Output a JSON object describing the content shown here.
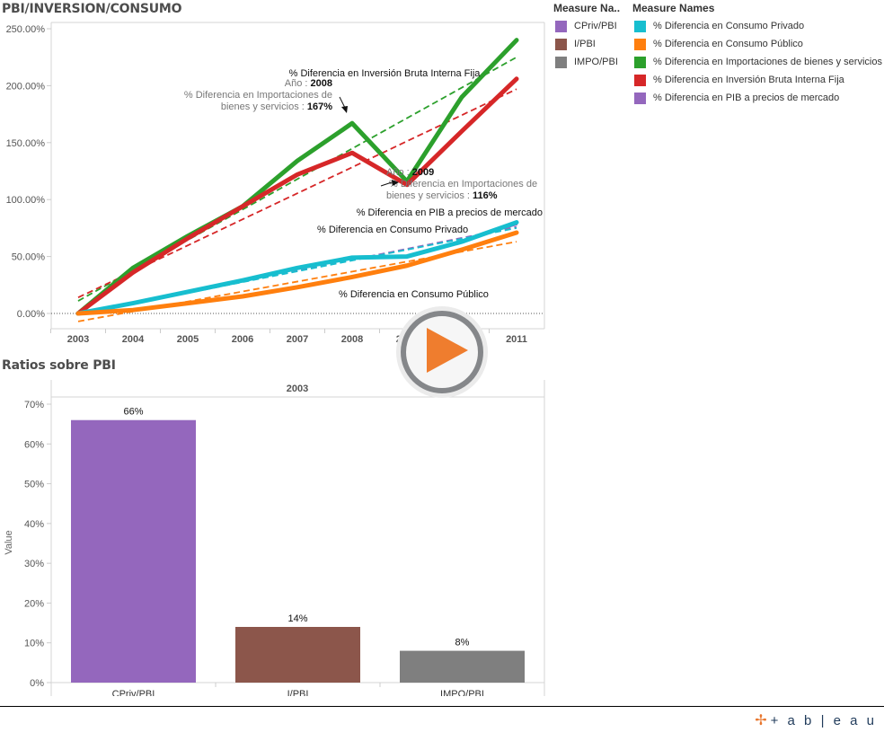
{
  "line_chart_title": "PBI/INVERSION/CONSUMO",
  "bar_chart_title": "Ratios sobre PBI",
  "legend_ratios": {
    "title": "Measure Na..",
    "items": [
      {
        "label": "CPriv/PBI",
        "color": "#9467bd"
      },
      {
        "label": "I/PBI",
        "color": "#8c564b"
      },
      {
        "label": "IMPO/PBI",
        "color": "#7f7f7f"
      }
    ]
  },
  "legend_measures": {
    "title": "Measure Names",
    "items": [
      {
        "label": "% Diferencia en Consumo Privado",
        "color": "#17becf"
      },
      {
        "label": "% Diferencia en Consumo Público",
        "color": "#ff7f0e"
      },
      {
        "label": "% Diferencia en Importaciones de bienes y servicios",
        "color": "#2ca02c"
      },
      {
        "label": "% Diferencia en Inversión Bruta Interna Fija",
        "color": "#d62728"
      },
      {
        "label": "% Diferencia en PIB a precios de mercado",
        "color": "#9467bd"
      }
    ]
  },
  "play_button": {
    "icon": "play-icon",
    "color": "#ef7d2e"
  },
  "branding": {
    "logo_text": "+ a b | e a u",
    "logo_mark": "✢"
  },
  "chart_data": [
    {
      "type": "line",
      "title": "PBI/INVERSION/CONSUMO",
      "xlabel": "",
      "ylabel": "",
      "x": [
        "2003",
        "2004",
        "2005",
        "2006",
        "2007",
        "2008",
        "2009",
        "2010",
        "2011"
      ],
      "ylim": [
        -15,
        250
      ],
      "yticks": [
        0,
        50,
        100,
        150,
        200,
        250
      ],
      "ytick_labels": [
        "0.00%",
        "50.00%",
        "100.00%",
        "150.00%",
        "200.00%",
        "250.00%"
      ],
      "zero_line": "dotted",
      "trend_lines": true,
      "series": [
        {
          "name": "% Diferencia en Importaciones de bienes y servicios",
          "color": "#2ca02c",
          "values": [
            0,
            40,
            68,
            94,
            134,
            167,
            116,
            190,
            240
          ],
          "trend": [
            11,
            225
          ]
        },
        {
          "name": "% Diferencia en Inversión Bruta Interna Fija",
          "color": "#d62728",
          "values": [
            0,
            36,
            66,
            94,
            122,
            141,
            113,
            160,
            206
          ],
          "trend": [
            14,
            197
          ]
        },
        {
          "name": "% Diferencia en PIB a precios de mercado",
          "color": "#9467bd",
          "values": [
            0,
            9,
            19,
            29,
            40,
            50,
            51,
            64,
            78
          ],
          "trend": [
            -1,
            76
          ]
        },
        {
          "name": "% Diferencia en Consumo Privado",
          "color": "#17becf",
          "values": [
            0,
            9,
            19,
            29,
            40,
            49,
            50,
            63,
            80
          ],
          "trend": [
            -1,
            75
          ]
        },
        {
          "name": "% Diferencia en Consumo Público",
          "color": "#ff7f0e",
          "values": [
            0,
            3,
            9,
            15,
            23,
            32,
            42,
            56,
            71
          ],
          "trend": [
            -7,
            63
          ]
        }
      ],
      "annotations": [
        {
          "text": "% Diferencia en Inversión Bruta Interna Fija",
          "style": "label"
        },
        {
          "text": "% Diferencia en PIB a precios de mercado",
          "style": "label"
        },
        {
          "text": "% Diferencia en Consumo Privado",
          "style": "label"
        },
        {
          "text": "% Diferencia en Consumo Público",
          "style": "label"
        },
        {
          "year_label": "Año : ",
          "year": "2008",
          "measure_label": "% Diferencia en Importaciones de",
          "measure_label2": "bienes y servicios : ",
          "value": "167%"
        },
        {
          "year_label": "Año : ",
          "year": "2009",
          "measure_label": "% Diferencia en Importaciones de",
          "measure_label2": "bienes y servicios : ",
          "value": "116%"
        }
      ]
    },
    {
      "type": "bar",
      "title": "Ratios sobre PBI",
      "header": "2003",
      "categories": [
        "CPriv/PBI",
        "I/PBI",
        "IMPO/PBI"
      ],
      "values": [
        66,
        14,
        8
      ],
      "data_labels": [
        "66%",
        "14%",
        "8%"
      ],
      "colors": [
        "#9467bd",
        "#8c564b",
        "#7f7f7f"
      ],
      "xlabel": "",
      "ylabel": "Value",
      "ylim": [
        0,
        70
      ],
      "yticks": [
        0,
        10,
        20,
        30,
        40,
        50,
        60,
        70
      ],
      "ytick_labels": [
        "0%",
        "10%",
        "20%",
        "30%",
        "40%",
        "50%",
        "60%",
        "70%"
      ]
    }
  ]
}
